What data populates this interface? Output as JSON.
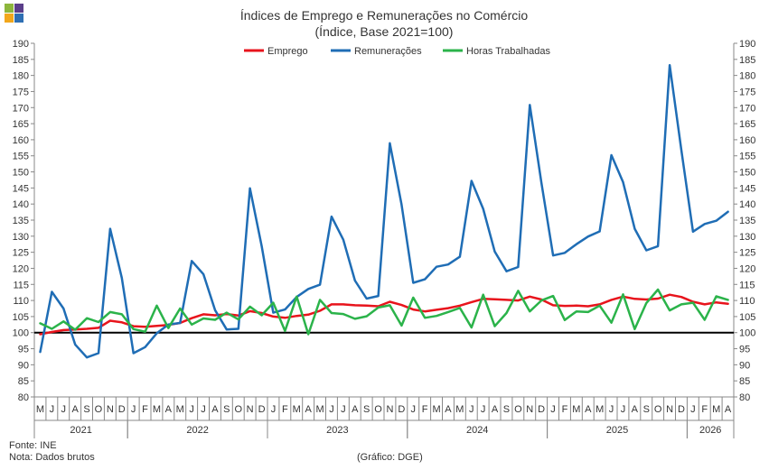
{
  "chart_data": {
    "type": "line",
    "title": "Índices de Emprego e Remunerações no Comércio",
    "subtitle": "(Índice, Base 2021=100)",
    "ylim": [
      80,
      190
    ],
    "ytick_step": 5,
    "grid": false,
    "legend_position": "top",
    "reference_line": 100,
    "month_letters": [
      "M",
      "J",
      "J",
      "A",
      "S",
      "O",
      "N",
      "D",
      "J",
      "F",
      "M",
      "A",
      "M",
      "J",
      "J",
      "A",
      "S",
      "O",
      "N",
      "D",
      "J",
      "F",
      "M",
      "A",
      "M",
      "J",
      "J",
      "A",
      "S",
      "O",
      "N",
      "D",
      "J",
      "F",
      "M",
      "A",
      "M",
      "J",
      "J",
      "A",
      "S",
      "O",
      "N",
      "D",
      "J",
      "F",
      "M",
      "A",
      "M",
      "J",
      "J",
      "A",
      "S",
      "O",
      "N",
      "D",
      "J",
      "F",
      "M",
      "A"
    ],
    "years": [
      {
        "label": "2021",
        "start": 0,
        "count": 8
      },
      {
        "label": "2022",
        "start": 8,
        "count": 12
      },
      {
        "label": "2023",
        "start": 20,
        "count": 12
      },
      {
        "label": "2024",
        "start": 32,
        "count": 12
      },
      {
        "label": "2025",
        "start": 44,
        "count": 12
      },
      {
        "label": "2026",
        "start": 56,
        "count": 4
      }
    ],
    "series": [
      {
        "name": "Emprego",
        "color": "#e8141c",
        "values": [
          99.5,
          100.2,
          100.8,
          101.0,
          101.2,
          101.5,
          103.7,
          103.2,
          102.0,
          101.8,
          102.1,
          102.4,
          103.0,
          104.5,
          105.7,
          105.4,
          105.8,
          105.3,
          106.7,
          106.1,
          105.0,
          104.6,
          105.2,
          105.6,
          106.8,
          108.8,
          108.8,
          108.5,
          108.4,
          108.2,
          109.6,
          108.6,
          107.2,
          106.6,
          107.1,
          107.6,
          108.4,
          109.5,
          110.5,
          110.4,
          110.2,
          110.0,
          111.2,
          110.3,
          108.5,
          108.3,
          108.4,
          108.2,
          108.8,
          110.2,
          111.2,
          110.5,
          110.3,
          110.6,
          111.8,
          111.1,
          109.6,
          108.8,
          109.4,
          109.0
        ]
      },
      {
        "name": "Remunerações",
        "color": "#1f6db5",
        "values": [
          94.0,
          112.7,
          107.5,
          96.3,
          92.3,
          93.6,
          132.3,
          117.0,
          93.6,
          95.5,
          99.8,
          102.5,
          103.0,
          122.3,
          118.2,
          107.0,
          101.0,
          101.2,
          144.9,
          126.9,
          106.2,
          107.2,
          111.1,
          113.6,
          114.9,
          136.1,
          128.9,
          116.2,
          110.6,
          111.4,
          158.9,
          139.8,
          115.5,
          116.6,
          120.5,
          121.2,
          123.6,
          147.2,
          138.5,
          125.2,
          119.1,
          120.4,
          170.8,
          146.7,
          124.0,
          124.8,
          127.5,
          129.9,
          131.5,
          155.2,
          146.8,
          132.3,
          125.6,
          126.9,
          183.2,
          156.8,
          131.4,
          133.8,
          134.8,
          137.6
        ]
      },
      {
        "name": "Horas Trabalhadas",
        "color": "#2bb34a",
        "values": [
          102.9,
          101.2,
          103.5,
          100.9,
          104.5,
          103.3,
          106.4,
          105.7,
          101.1,
          100.3,
          108.4,
          101.4,
          107.5,
          102.5,
          104.4,
          104.0,
          106.2,
          104.1,
          108.1,
          105.4,
          109.3,
          100.5,
          111.2,
          99.5,
          110.2,
          106.1,
          105.8,
          104.3,
          105.1,
          107.8,
          108.5,
          102.2,
          110.9,
          104.6,
          105.2,
          106.4,
          107.7,
          101.6,
          111.8,
          102.0,
          106.1,
          113.0,
          106.6,
          110.0,
          111.4,
          103.9,
          106.6,
          106.4,
          108.4,
          103.1,
          111.9,
          101.1,
          109.2,
          113.4,
          106.9,
          108.8,
          109.3,
          104.0,
          111.3,
          110.2
        ]
      }
    ]
  },
  "footer": {
    "source": "Fonte: INE",
    "note": "Nota: Dados brutos",
    "credit": "(Gráfico: DGE)"
  },
  "logo_colors": [
    "#8db63c",
    "#5a3e8a",
    "#f2a71b",
    "#2f6fb3"
  ]
}
